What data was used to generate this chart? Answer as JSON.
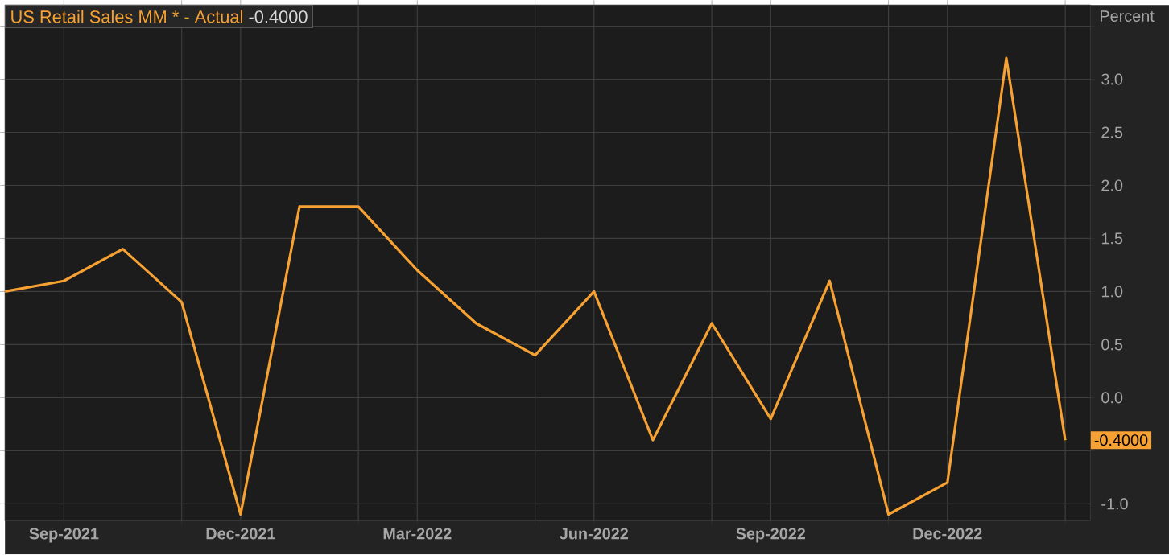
{
  "chart_data": {
    "type": "line",
    "ylabel": "Percent",
    "annotations": [
      "-0.4000"
    ],
    "x": [
      "2021-08",
      "2021-09",
      "2021-10",
      "2021-11",
      "2021-12",
      "2022-01",
      "2022-02",
      "2022-03",
      "2022-04",
      "2022-05",
      "2022-06",
      "2022-07",
      "2022-08",
      "2022-09",
      "2022-10",
      "2022-11",
      "2022-12",
      "2023-01",
      "2023-02"
    ],
    "series": [
      {
        "name": "US Retail Sales MM * - Actual",
        "color": "#f7a133",
        "values": [
          1.0,
          1.1,
          1.4,
          0.9,
          -1.1,
          1.8,
          1.8,
          1.2,
          0.7,
          0.4,
          1.0,
          -0.4,
          0.7,
          -0.2,
          1.1,
          -1.1,
          -0.8,
          3.2,
          -0.4
        ],
        "value_labels": [
          null,
          null,
          null,
          null,
          null,
          null,
          null,
          null,
          null,
          null,
          null,
          null,
          null,
          null,
          null,
          null,
          null,
          null,
          "-0.4000"
        ]
      }
    ],
    "xlim": [
      "2021-08",
      "2023-02-13"
    ],
    "xticks": [
      {
        "value": "2021-09",
        "label": "Sep-2021"
      },
      {
        "value": "2021-11",
        "label": null
      },
      {
        "value": "2021-12",
        "label": "Dec-2021"
      },
      {
        "value": "2022-02",
        "label": null
      },
      {
        "value": "2022-03",
        "label": "Mar-2022"
      },
      {
        "value": "2022-05",
        "label": null
      },
      {
        "value": "2022-06",
        "label": "Jun-2022"
      },
      {
        "value": "2022-08",
        "label": null
      },
      {
        "value": "2022-09",
        "label": "Sep-2022"
      },
      {
        "value": "2022-11",
        "label": null
      },
      {
        "value": "2022-12",
        "label": "Dec-2022"
      },
      {
        "value": "2023-02",
        "label": null
      }
    ],
    "ylim": [
      -1.16,
      3.7
    ],
    "yticks": [
      {
        "value": -1,
        "label": "-1.0"
      },
      {
        "value": -0.5,
        "label": null
      },
      {
        "value": 0,
        "label": "0.0"
      },
      0.5,
      {
        "value": 1,
        "label": "1.0"
      },
      1.5,
      {
        "value": 2,
        "label": "2.0"
      },
      2.5,
      {
        "value": 3,
        "label": "3.0"
      },
      {
        "value": 3.5,
        "label": null
      }
    ],
    "grid": true,
    "legend": "top left"
  }
}
